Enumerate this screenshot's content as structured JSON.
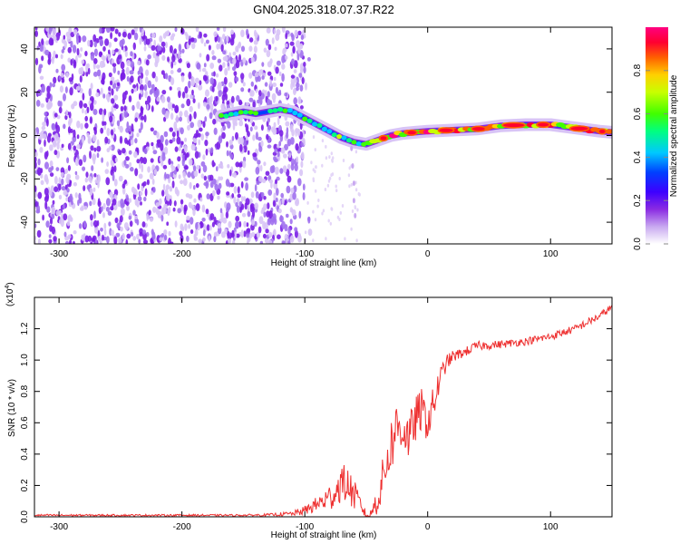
{
  "title": "GN04.2025.318.07.37.R22",
  "chart_data": [
    {
      "type": "heatmap",
      "name": "spectrogram",
      "xlabel": "Height of straight line (km)",
      "ylabel": "Frequency (Hz)",
      "xlim": [
        -320,
        150
      ],
      "ylim": [
        -50,
        50
      ],
      "xticks": [
        -300,
        -200,
        -100,
        0,
        100
      ],
      "xtick_labels": [
        "-300",
        "-200",
        "-100",
        "0",
        "100"
      ],
      "yticks": [
        -40,
        -20,
        0,
        20,
        40
      ],
      "ytick_labels": [
        "-40",
        "-20",
        "0",
        "20",
        "40"
      ],
      "noise_region_x": [
        -320,
        -100
      ],
      "signal_ridge": {
        "x": [
          -168,
          -160,
          -150,
          -140,
          -130,
          -120,
          -110,
          -100,
          -90,
          -80,
          -70,
          -60,
          -50,
          -40,
          -30,
          -20,
          -10,
          0,
          20,
          40,
          60,
          80,
          100,
          120,
          140,
          150
        ],
        "y": [
          9,
          10,
          11,
          10,
          11,
          12,
          11,
          8,
          5,
          2,
          -1,
          -3,
          -4,
          -2,
          0,
          1,
          1.5,
          2,
          2.5,
          3,
          4.5,
          5,
          5,
          3.5,
          2,
          1.5
        ]
      },
      "colorbar": {
        "label": "Normalized spectral amplitude",
        "range": [
          0,
          1
        ],
        "ticks": [
          0.0,
          0.2,
          0.4,
          0.6,
          0.8
        ],
        "tick_labels": [
          "0.0",
          "0.2",
          "0.4",
          "0.6",
          "0.8"
        ],
        "colors": [
          "#ffffff",
          "#c8a8f0",
          "#8a2be2",
          "#3d00ff",
          "#0040ff",
          "#00c8ff",
          "#00ff80",
          "#40ff00",
          "#c8ff00",
          "#ffd000",
          "#ff6000",
          "#ff0030",
          "#ff0080"
        ]
      }
    },
    {
      "type": "line",
      "name": "snr",
      "xlabel": "Height of straight line (km)",
      "ylabel": "SNR (10 * v/v)",
      "y_multiplier_label": "(x10",
      "y_multiplier_exp": "4",
      "y_multiplier_close": ")",
      "xlim": [
        -320,
        150
      ],
      "ylim": [
        0,
        1.4
      ],
      "xticks": [
        -300,
        -200,
        -100,
        0,
        100
      ],
      "xtick_labels": [
        "-300",
        "-200",
        "-100",
        "0",
        "100"
      ],
      "yticks": [
        0.0,
        0.2,
        0.4,
        0.6,
        0.8,
        1.0,
        1.2
      ],
      "ytick_labels": [
        "0.0",
        "0.2",
        "0.4",
        "0.6",
        "0.8",
        "1.0",
        "1.2"
      ],
      "color": "#ee3030",
      "series": [
        {
          "name": "SNR",
          "x": [
            -320,
            -300,
            -250,
            -200,
            -150,
            -130,
            -110,
            -100,
            -90,
            -80,
            -75,
            -70,
            -65,
            -60,
            -55,
            -50,
            -47,
            -45,
            -40,
            -35,
            -30,
            -25,
            -20,
            -15,
            -10,
            -5,
            0,
            5,
            10,
            15,
            20,
            30,
            40,
            60,
            80,
            100,
            120,
            140,
            150
          ],
          "y": [
            0.01,
            0.01,
            0.01,
            0.01,
            0.01,
            0.012,
            0.02,
            0.04,
            0.08,
            0.12,
            0.16,
            0.22,
            0.2,
            0.14,
            0.08,
            0.01,
            0.0,
            0.05,
            0.12,
            0.3,
            0.45,
            0.58,
            0.56,
            0.5,
            0.62,
            0.68,
            0.6,
            0.72,
            0.88,
            0.98,
            1.02,
            1.05,
            1.09,
            1.1,
            1.12,
            1.15,
            1.2,
            1.28,
            1.34
          ],
          "noise": [
            0.006,
            0.006,
            0.006,
            0.006,
            0.006,
            0.008,
            0.015,
            0.03,
            0.05,
            0.09,
            0.1,
            0.12,
            0.12,
            0.1,
            0.06,
            0.02,
            0.02,
            0.06,
            0.1,
            0.15,
            0.18,
            0.18,
            0.16,
            0.15,
            0.15,
            0.14,
            0.12,
            0.12,
            0.08,
            0.05,
            0.04,
            0.03,
            0.03,
            0.025,
            0.025,
            0.025,
            0.025,
            0.025,
            0.02
          ]
        }
      ]
    }
  ]
}
